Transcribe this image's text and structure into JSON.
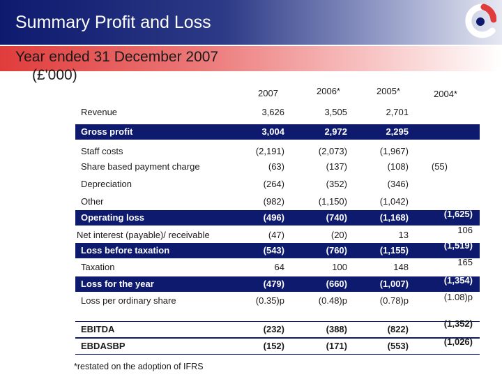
{
  "slide": {
    "title": "Summary Profit and Loss",
    "subtitle": "Year ended 31 December 2007",
    "unit": "(£'000)",
    "footnote": "*restated on the adoption of IFRS"
  },
  "table": {
    "columns": [
      "2007",
      "2006*",
      "2005*",
      "2004*"
    ],
    "rows": [
      {
        "label": "Revenue",
        "v2007": "3,626",
        "v2006": "3,505",
        "v2005": "2,701",
        "v2004": ""
      },
      {
        "label": "Gross profit",
        "v2007": "3,004",
        "v2006": "2,972",
        "v2005": "2,295",
        "v2004": ""
      },
      {
        "label": "Staff costs",
        "v2007": "(2,191)",
        "v2006": "(2,073)",
        "v2005": "(1,967)",
        "v2004": ""
      },
      {
        "label": "Share based payment charge",
        "v2007": "(63)",
        "v2006": "(137)",
        "v2005": "(108)",
        "v2004": "(55)"
      },
      {
        "label": "Depreciation",
        "v2007": "(264)",
        "v2006": "(352)",
        "v2005": "(346)",
        "v2004": ""
      },
      {
        "label": "Other",
        "v2007": "(982)",
        "v2006": "(1,150)",
        "v2005": "(1,042)",
        "v2004": ""
      },
      {
        "label": "Operating loss",
        "v2007": "(496)",
        "v2006": "(740)",
        "v2005": "(1,168)",
        "v2004": "(1,625)"
      },
      {
        "label": "Net interest (payable)/ receivable",
        "v2007": "(47)",
        "v2006": "(20)",
        "v2005": "13",
        "v2004": "106"
      },
      {
        "label": "Loss before taxation",
        "v2007": "(543)",
        "v2006": "(760)",
        "v2005": "(1,155)",
        "v2004": "(1,519)"
      },
      {
        "label": "Taxation",
        "v2007": "64",
        "v2006": "100",
        "v2005": "148",
        "v2004": "165"
      },
      {
        "label": "Loss for the year",
        "v2007": "(479)",
        "v2006": "(660)",
        "v2005": "(1,007)",
        "v2004": "(1,354)"
      },
      {
        "label": "Loss per ordinary share",
        "v2007": "(0.35)p",
        "v2006": "(0.48)p",
        "v2005": "(0.78)p",
        "v2004": "(1.08)p"
      },
      {
        "label": "EBITDA",
        "v2007": "(232)",
        "v2006": "(388)",
        "v2005": "(822)",
        "v2004": "(1,352)"
      },
      {
        "label": "EBDASBP",
        "v2007": "(152)",
        "v2006": "(171)",
        "v2005": "(553)",
        "v2004": "(1,026)"
      }
    ]
  },
  "colors": {
    "band": "#0d1a6e",
    "accent_red": "#e03c3c"
  },
  "icons": {
    "logo": "company-logo-icon"
  }
}
